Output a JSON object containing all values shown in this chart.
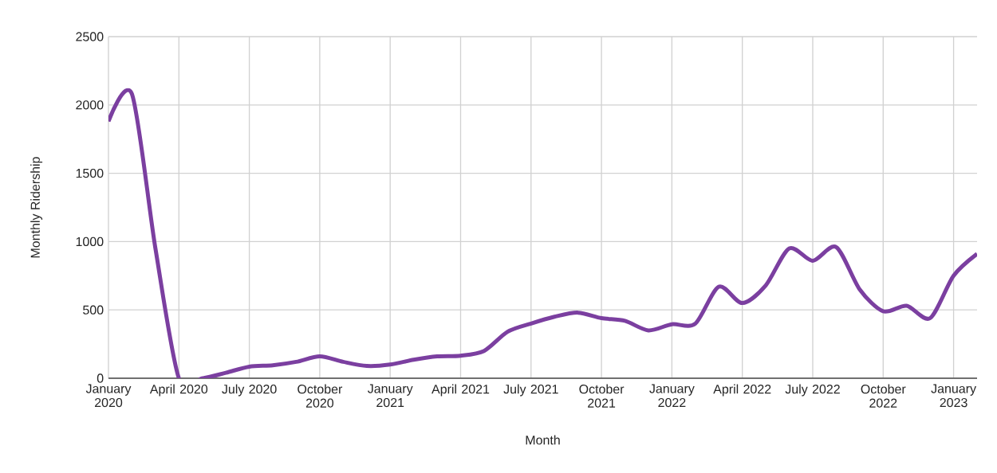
{
  "chart_data": {
    "type": "line",
    "xlabel": "Month",
    "ylabel": "Monthly Ridership",
    "x": [
      "2020-01",
      "2020-02",
      "2020-03",
      "2020-04",
      "2020-05",
      "2020-06",
      "2020-07",
      "2020-08",
      "2020-09",
      "2020-10",
      "2020-11",
      "2020-12",
      "2021-01",
      "2021-02",
      "2021-03",
      "2021-04",
      "2021-05",
      "2021-06",
      "2021-07",
      "2021-08",
      "2021-09",
      "2021-10",
      "2021-11",
      "2021-12",
      "2022-01",
      "2022-02",
      "2022-03",
      "2022-04",
      "2022-05",
      "2022-06",
      "2022-07",
      "2022-08",
      "2022-09",
      "2022-10",
      "2022-11",
      "2022-12",
      "2023-01",
      "2023-02"
    ],
    "series": [
      {
        "color": "#7b3fa0",
        "values": [
          1880,
          2080,
          950,
          0,
          0,
          40,
          85,
          95,
          120,
          160,
          120,
          90,
          100,
          135,
          160,
          165,
          200,
          340,
          400,
          450,
          480,
          440,
          420,
          350,
          395,
          400,
          670,
          550,
          680,
          950,
          860,
          960,
          650,
          490,
          530,
          440,
          750,
          910
        ]
      }
    ],
    "xlim": [
      "2020-01",
      "2023-02"
    ],
    "xticks": [
      {
        "value": "2020-01",
        "label": "January 2020"
      },
      {
        "value": "2020-04",
        "label": "April 2020"
      },
      {
        "value": "2020-07",
        "label": "July 2020"
      },
      {
        "value": "2020-10",
        "label": "October 2020"
      },
      {
        "value": "2021-01",
        "label": "January 2021"
      },
      {
        "value": "2021-04",
        "label": "April 2021"
      },
      {
        "value": "2021-07",
        "label": "July 2021"
      },
      {
        "value": "2021-10",
        "label": "October 2021"
      },
      {
        "value": "2022-01",
        "label": "January 2022"
      },
      {
        "value": "2022-04",
        "label": "April 2022"
      },
      {
        "value": "2022-07",
        "label": "July 2022"
      },
      {
        "value": "2022-10",
        "label": "October 2022"
      },
      {
        "value": "2023-01",
        "label": "January 2023"
      }
    ],
    "ylim": [
      0,
      2500
    ],
    "yticks": [
      0,
      500,
      1000,
      1500,
      2000,
      2500
    ],
    "grid": true,
    "marker": "none",
    "line_style": "solid"
  }
}
